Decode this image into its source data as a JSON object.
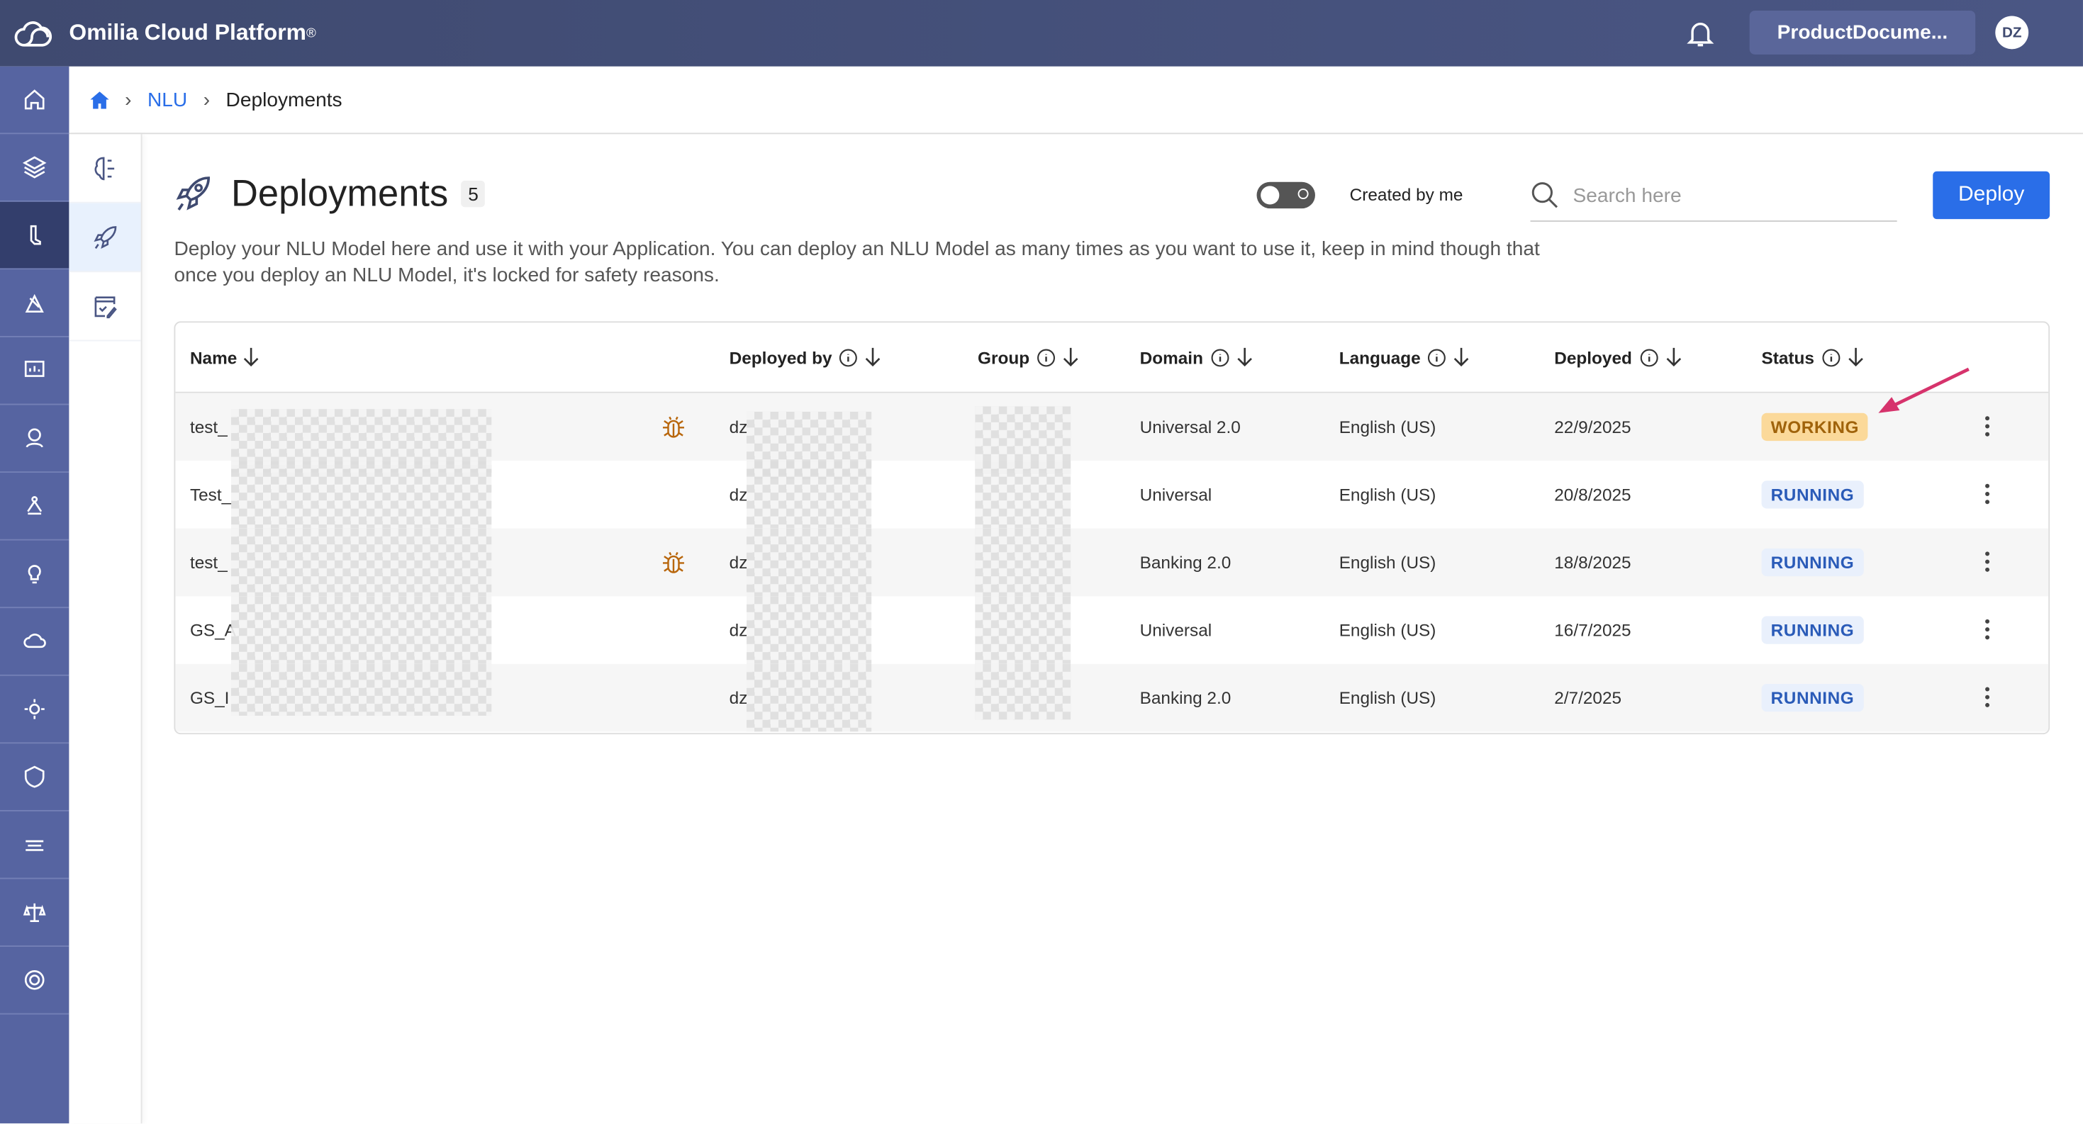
{
  "app": {
    "title": "Omilia Cloud Platform",
    "reg": "®",
    "org": "ProductDocume...",
    "avatar": "DZ"
  },
  "breadcrumb": {
    "home_icon": "home-icon",
    "items": [
      "NLU",
      "Deployments"
    ]
  },
  "sidebar": {
    "items": [
      "home",
      "layers",
      "nlu",
      "analytics",
      "reports",
      "agent",
      "network",
      "ideas",
      "cloud",
      "settings",
      "security",
      "speech",
      "legal",
      "support"
    ],
    "active": "nlu"
  },
  "subnav": {
    "items": [
      "nlu-models",
      "deployments",
      "tests"
    ],
    "active": "deployments"
  },
  "page": {
    "title": "Deployments",
    "count": "5",
    "created_by_me": "Created by me",
    "search_placeholder": "Search here",
    "deploy": "Deploy",
    "description": "Deploy your NLU Model here and use it with your Application. You can deploy an NLU Model as many times as you want to use it, keep in mind though that once you deploy an NLU Model, it's locked for safety reasons."
  },
  "table": {
    "columns": [
      "Name",
      "Deployed by",
      "Group",
      "Domain",
      "Language",
      "Deployed",
      "Status"
    ],
    "rows": [
      {
        "name": "test_",
        "bug": true,
        "by": "dz",
        "domain": "Universal 2.0",
        "language": "English (US)",
        "deployed": "22/9/2025",
        "status": "WORKING"
      },
      {
        "name": "Test_",
        "bug": false,
        "by": "dz",
        "domain": "Universal",
        "language": "English (US)",
        "deployed": "20/8/2025",
        "status": "RUNNING"
      },
      {
        "name": "test_",
        "bug": true,
        "by": "dz",
        "domain": "Banking 2.0",
        "language": "English (US)",
        "deployed": "18/8/2025",
        "status": "RUNNING"
      },
      {
        "name": "GS_A",
        "bug": false,
        "by": "dz",
        "domain": "Universal",
        "language": "English (US)",
        "deployed": "16/7/2025",
        "status": "RUNNING"
      },
      {
        "name": "GS_I",
        "bug": false,
        "by": "dz",
        "domain": "Banking 2.0",
        "language": "English (US)",
        "deployed": "2/7/2025",
        "status": "RUNNING"
      }
    ]
  },
  "colors": {
    "accent": "#2a6ee8",
    "topbar": "#3f4a70",
    "sidebar": "#5664a1",
    "working": "#fbd99a",
    "running": "#e9f0fc",
    "annotation_arrow": "#d6336c"
  }
}
